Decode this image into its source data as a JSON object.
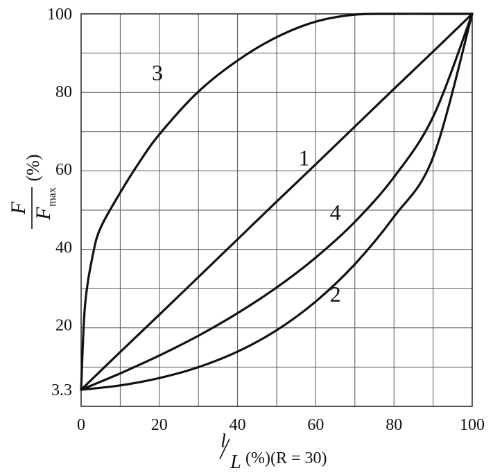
{
  "chart_data": {
    "type": "line",
    "xlabel": {
      "numerator": "l",
      "denominator": "L",
      "suffix": "(%)(R = 30)"
    },
    "ylabel": {
      "numerator": "F",
      "denominator": "F",
      "denominator_subscript": "max",
      "suffix": "(%)"
    },
    "xlim": [
      0,
      100
    ],
    "ylim": [
      0,
      100
    ],
    "x_ticks": [
      0,
      20,
      40,
      60,
      80,
      100
    ],
    "y_ticks": [
      3.3,
      20,
      40,
      60,
      80,
      100
    ],
    "grid": true,
    "series": [
      {
        "name": "1",
        "x": [
          0,
          10,
          20,
          30,
          40,
          50,
          60,
          70,
          80,
          90,
          100
        ],
        "y": [
          3.3,
          13,
          22.6,
          32.3,
          42,
          51.7,
          61.3,
          71,
          80.7,
          90.3,
          100
        ]
      },
      {
        "name": "2",
        "x": [
          0,
          10,
          20,
          30,
          40,
          50,
          60,
          70,
          80,
          90,
          100
        ],
        "y": [
          3.3,
          4.4,
          6.3,
          9.1,
          13.1,
          18.6,
          26,
          35.6,
          47.8,
          63.1,
          100
        ]
      },
      {
        "name": "3",
        "x": [
          0,
          1,
          3,
          5,
          10,
          15,
          20,
          30,
          40,
          50,
          60,
          70,
          80,
          90,
          100
        ],
        "y": [
          3.3,
          25,
          38,
          45,
          54,
          62,
          69,
          80,
          88,
          94,
          98,
          99.8,
          100,
          100,
          100
        ]
      },
      {
        "name": "4",
        "x": [
          0,
          10,
          20,
          30,
          40,
          50,
          60,
          70,
          80,
          90,
          100
        ],
        "y": [
          3.3,
          7.5,
          12.1,
          17.2,
          23,
          29.6,
          37.3,
          46.5,
          58,
          73.5,
          100
        ]
      }
    ],
    "annotations": [
      {
        "text": "1",
        "x": 57,
        "y": 61
      },
      {
        "text": "2",
        "x": 65,
        "y": 26
      },
      {
        "text": "3",
        "x": 19.5,
        "y": 83
      },
      {
        "text": "4",
        "x": 65,
        "y": 47
      }
    ]
  }
}
